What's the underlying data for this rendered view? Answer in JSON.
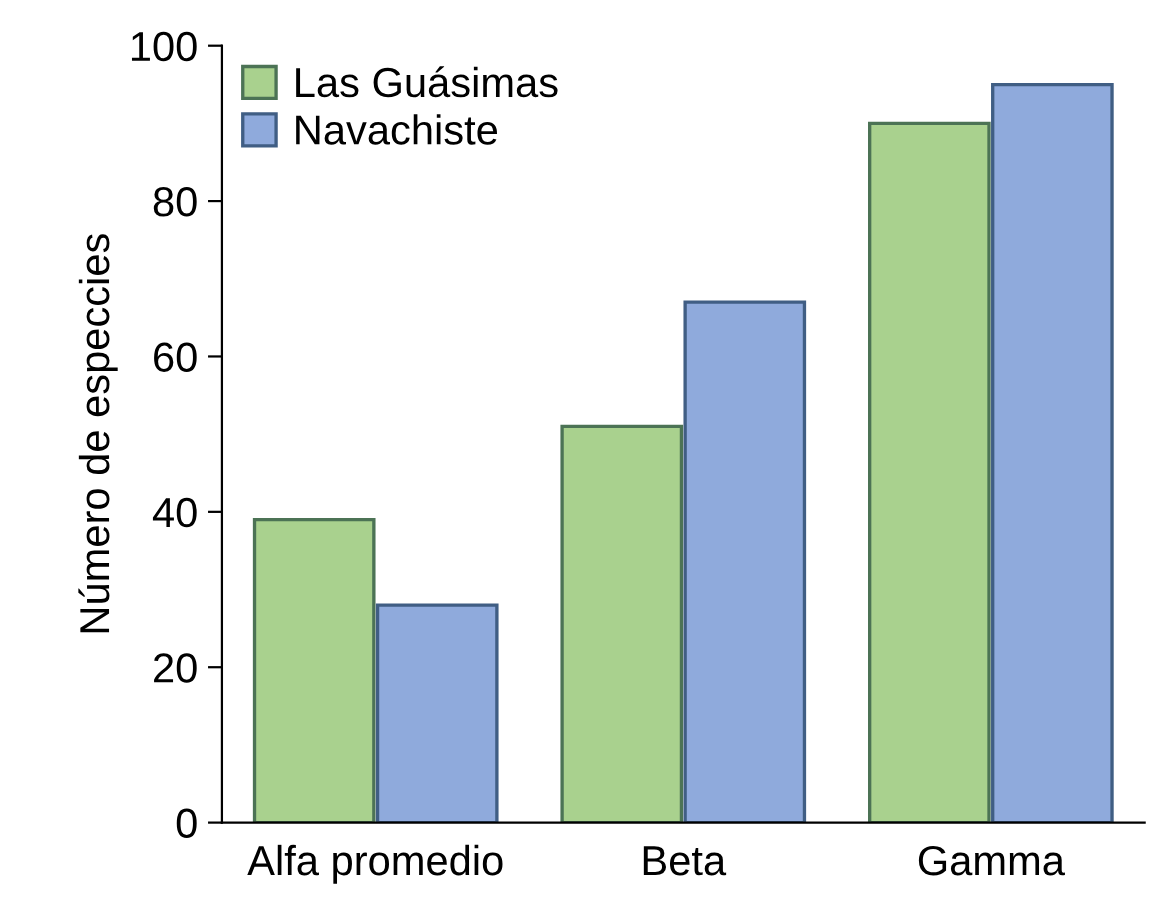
{
  "chart_data": {
    "type": "bar",
    "ylabel": "Número de especcies",
    "categories": [
      "Alfa promedio",
      "Beta",
      "Gamma"
    ],
    "series": [
      {
        "name": "Las Guásimas",
        "color": "#a9d18e",
        "values": [
          39,
          51,
          90
        ]
      },
      {
        "name": "Navachiste",
        "color": "#8faadc",
        "values": [
          28,
          67,
          95
        ]
      }
    ],
    "ylim": [
      0,
      100
    ],
    "yticks": [
      0,
      20,
      40,
      60,
      80,
      100
    ],
    "grid": false,
    "legend": "top left"
  }
}
